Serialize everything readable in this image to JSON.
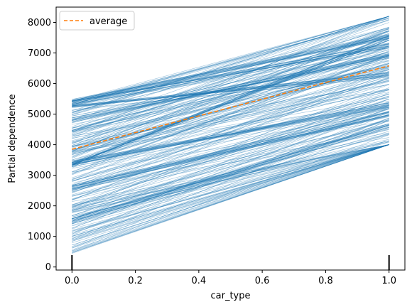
{
  "chart_data": {
    "type": "line",
    "xlabel": "car_type",
    "ylabel": "Partial dependence",
    "xlim": [
      -0.05,
      1.05
    ],
    "ylim": [
      -100,
      8500
    ],
    "x_ticks": [
      0.0,
      0.2,
      0.4,
      0.6,
      0.8,
      1.0
    ],
    "x_tick_labels": [
      "0.0",
      "0.2",
      "0.4",
      "0.6",
      "0.8",
      "1.0"
    ],
    "y_ticks": [
      0,
      1000,
      2000,
      3000,
      4000,
      5000,
      6000,
      7000,
      8000
    ],
    "y_tick_labels": [
      "0",
      "1000",
      "2000",
      "3000",
      "4000",
      "5000",
      "6000",
      "7000",
      "8000"
    ],
    "rug_x": [
      0.0,
      1.0
    ],
    "ice_lines": {
      "x": [
        0.0,
        1.0
      ],
      "color": "#1f77b4",
      "approx_count": 350,
      "value_at_x0_range": [
        400,
        5450
      ],
      "value_at_x1_range": [
        4000,
        8200
      ],
      "dense_bands": [
        {
          "y0": 5400,
          "y1": 7550
        },
        {
          "y0": 3350,
          "y1": 7500
        },
        {
          "y0": 3400,
          "y1": 5300
        },
        {
          "y0": 2600,
          "y1": 5000
        },
        {
          "y0": 1500,
          "y1": 4600
        },
        {
          "y0": 4800,
          "y1": 6900
        },
        {
          "y0": 5350,
          "y1": 7250
        },
        {
          "y0": 5200,
          "y1": 6300
        }
      ]
    },
    "series": [
      {
        "name": "average",
        "x": [
          0.0,
          1.0
        ],
        "values": [
          3850,
          6580
        ],
        "color": "#ff7f0e",
        "style": "dashed"
      }
    ],
    "legend": {
      "position": "top-left",
      "entries": [
        "average"
      ]
    }
  }
}
